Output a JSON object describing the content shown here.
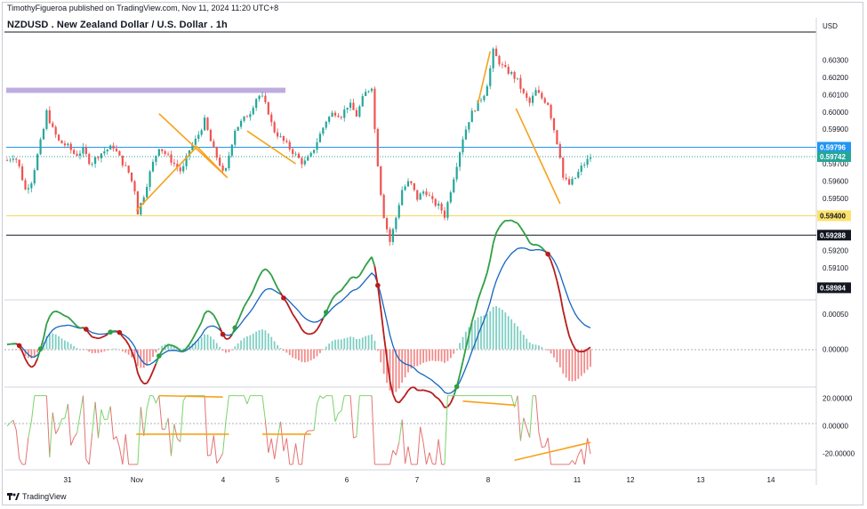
{
  "header": {
    "publisher": "TimothyFigueroa published on TradingView.com, Nov 11, 2024 11:20 UTC+8",
    "title": "NZDUSD . New Zealand Dollar / U.S. Dollar . 1h",
    "currency": "USD"
  },
  "footer": {
    "brand": "TradingView"
  },
  "colors": {
    "up": "#26a69a",
    "down": "#ef5350",
    "trendline": "#f7a21b",
    "zone": "#b39ddb",
    "cyan_line": "#2196f3",
    "yellow_line": "#f5d75a",
    "macd_fast": "#1565c0",
    "macd_slow_up": "#2e9e44",
    "macd_slow_down": "#b71c1c",
    "rsi_up": "#7bd36b",
    "rsi_down": "#e57373"
  },
  "chart_data": [
    {
      "type": "candlestick",
      "title": "NZDUSD . New Zealand Dollar / U.S. Dollar . 1h",
      "y_ticks": [
        "0.60300",
        "0.60200",
        "0.60100",
        "0.60000",
        "0.59900",
        "0.59700",
        "0.59600",
        "0.59500",
        "0.59200",
        "0.59100"
      ],
      "ylim": [
        0.5895,
        0.604
      ],
      "x_ticks": [
        "31",
        "Nov",
        "4",
        "5",
        "6",
        "7",
        "8",
        "11",
        "12",
        "13",
        "14"
      ],
      "price_tags": [
        {
          "label": "0.59796",
          "value": 0.59796,
          "bg": "#2196f3",
          "fg": "#ffffff"
        },
        {
          "label": "0.59742",
          "value": 0.59742,
          "bg": "#26a69a",
          "fg": "#ffffff"
        },
        {
          "label": "0.59400",
          "value": 0.594,
          "bg": "#fde36b",
          "fg": "#131722"
        },
        {
          "label": "0.59288",
          "value": 0.59288,
          "bg": "#131722",
          "fg": "#ffffff"
        },
        {
          "label": "0.58984",
          "value": 0.58984,
          "bg": "#131722",
          "fg": "#ffffff"
        }
      ],
      "horizontal_lines": [
        {
          "value": 0.59796,
          "color": "#2196f3"
        },
        {
          "value": 0.59742,
          "color": "#26a69a",
          "dotted": true
        },
        {
          "value": 0.594,
          "color": "#f5d75a"
        },
        {
          "value": 0.59288,
          "color": "#131722"
        }
      ],
      "supply_zone": {
        "from": 0.6011,
        "to": 0.6014
      },
      "path": [
        [
          0,
          0.5972
        ],
        [
          5,
          0.5975
        ],
        [
          8,
          0.5968
        ],
        [
          12,
          0.5955
        ],
        [
          16,
          0.596
        ],
        [
          20,
          0.5975
        ],
        [
          24,
          0.599
        ],
        [
          26,
          0.6
        ],
        [
          30,
          0.599
        ],
        [
          34,
          0.5983
        ],
        [
          40,
          0.598
        ],
        [
          45,
          0.5975
        ],
        [
          50,
          0.5978
        ],
        [
          55,
          0.597
        ],
        [
          60,
          0.5975
        ],
        [
          65,
          0.5978
        ],
        [
          70,
          0.598
        ],
        [
          75,
          0.5972
        ],
        [
          80,
          0.5965
        ],
        [
          84,
          0.5955
        ],
        [
          86,
          0.5942
        ],
        [
          90,
          0.5952
        ],
        [
          95,
          0.5968
        ],
        [
          100,
          0.598
        ],
        [
          105,
          0.5975
        ],
        [
          110,
          0.597
        ],
        [
          115,
          0.5965
        ],
        [
          120,
          0.5978
        ],
        [
          125,
          0.5985
        ],
        [
          130,
          0.5995
        ],
        [
          135,
          0.598
        ],
        [
          140,
          0.597
        ],
        [
          143,
          0.5962
        ],
        [
          146,
          0.5975
        ],
        [
          150,
          0.599
        ],
        [
          155,
          0.5995
        ],
        [
          160,
          0.6
        ],
        [
          165,
          0.601
        ],
        [
          168,
          0.6008
        ],
        [
          172,
          0.6
        ],
        [
          175,
          0.599
        ],
        [
          180,
          0.5985
        ],
        [
          185,
          0.598
        ],
        [
          190,
          0.5975
        ],
        [
          195,
          0.597
        ],
        [
          200,
          0.5975
        ],
        [
          205,
          0.5985
        ],
        [
          210,
          0.5995
        ],
        [
          215,
          0.6
        ],
        [
          220,
          0.5998
        ],
        [
          225,
          0.6005
        ],
        [
          230,
          0.5998
        ],
        [
          235,
          0.601
        ],
        [
          240,
          0.6015
        ],
        [
          242,
          0.599
        ],
        [
          245,
          0.596
        ],
        [
          248,
          0.594
        ],
        [
          252,
          0.5925
        ],
        [
          255,
          0.5935
        ],
        [
          260,
          0.5955
        ],
        [
          265,
          0.596
        ],
        [
          270,
          0.595
        ],
        [
          275,
          0.5955
        ],
        [
          280,
          0.5948
        ],
        [
          285,
          0.5945
        ],
        [
          288,
          0.594
        ],
        [
          292,
          0.5955
        ],
        [
          296,
          0.597
        ],
        [
          300,
          0.5985
        ],
        [
          305,
          0.5998
        ],
        [
          310,
          0.6005
        ],
        [
          315,
          0.6012
        ],
        [
          318,
          0.6025
        ],
        [
          320,
          0.6035
        ],
        [
          323,
          0.603
        ],
        [
          327,
          0.6025
        ],
        [
          332,
          0.6022
        ],
        [
          336,
          0.6018
        ],
        [
          340,
          0.601
        ],
        [
          344,
          0.6005
        ],
        [
          348,
          0.6012
        ],
        [
          352,
          0.6008
        ],
        [
          356,
          0.6005
        ],
        [
          360,
          0.599
        ],
        [
          364,
          0.5975
        ],
        [
          366,
          0.5962
        ],
        [
          370,
          0.5958
        ],
        [
          374,
          0.5962
        ],
        [
          378,
          0.5968
        ],
        [
          382,
          0.5972
        ],
        [
          384,
          0.5974
        ]
      ]
    },
    {
      "type": "line",
      "name": "macd",
      "y_ticks": [
        "0.00050",
        "0.00000"
      ],
      "ylim": [
        -0.00045,
        0.0006
      ]
    },
    {
      "type": "line",
      "name": "oscillator",
      "y_ticks": [
        "20.00000",
        "0.00000",
        "-20.00000"
      ],
      "ylim": [
        -30,
        25
      ]
    }
  ]
}
